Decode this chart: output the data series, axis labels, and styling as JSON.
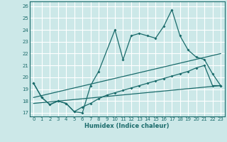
{
  "xlabel": "Humidex (Indice chaleur)",
  "bg_color": "#cce8e8",
  "grid_color": "#ffffff",
  "line_color": "#1a6b6b",
  "xlim": [
    -0.5,
    23.5
  ],
  "ylim": [
    16.7,
    26.4
  ],
  "xticks": [
    0,
    1,
    2,
    3,
    4,
    5,
    6,
    7,
    8,
    9,
    10,
    11,
    12,
    13,
    14,
    15,
    16,
    17,
    18,
    19,
    20,
    21,
    22,
    23
  ],
  "yticks": [
    17,
    18,
    19,
    20,
    21,
    22,
    23,
    24,
    25,
    26
  ],
  "series1_x": [
    0,
    1,
    2,
    3,
    4,
    5,
    6,
    7,
    8,
    10,
    11,
    12,
    13,
    14,
    15,
    16,
    17,
    18,
    19,
    20,
    21,
    22,
    23
  ],
  "series1_y": [
    19.5,
    18.3,
    17.7,
    18.0,
    17.8,
    17.1,
    17.0,
    19.3,
    20.5,
    24.0,
    21.5,
    23.5,
    23.7,
    23.5,
    23.3,
    24.3,
    25.7,
    23.5,
    22.3,
    21.7,
    21.5,
    20.3,
    19.3
  ],
  "series2_x": [
    0,
    1,
    2,
    3,
    4,
    5,
    6,
    7,
    8,
    9,
    10,
    11,
    12,
    13,
    14,
    15,
    16,
    17,
    18,
    19,
    20,
    21,
    22,
    23
  ],
  "series2_y": [
    19.5,
    18.3,
    17.7,
    18.0,
    17.8,
    17.1,
    17.5,
    17.8,
    18.2,
    18.5,
    18.7,
    18.9,
    19.1,
    19.3,
    19.5,
    19.7,
    19.9,
    20.1,
    20.3,
    20.5,
    20.8,
    21.0,
    19.3,
    19.3
  ],
  "trend1_x": [
    0,
    23
  ],
  "trend1_y": [
    18.3,
    22.0
  ],
  "trend2_x": [
    0,
    23
  ],
  "trend2_y": [
    17.8,
    19.3
  ]
}
